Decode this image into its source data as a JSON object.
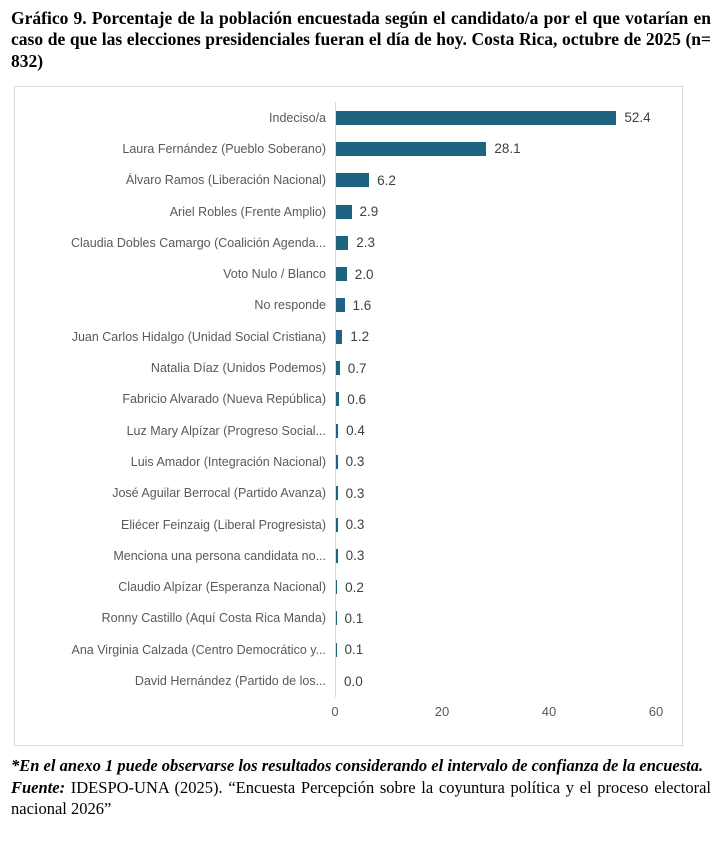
{
  "title": "Gráfico 9. Porcentaje de la población encuestada según el candidato/a por el que votarían en caso de que las elecciones presidenciales fueran el día de hoy. Costa Rica, octubre de 2025 (n= 832)",
  "chart_data": {
    "type": "bar",
    "orientation": "horizontal",
    "categories": [
      "Indeciso/a",
      "Laura Fernández (Pueblo Soberano)",
      "Álvaro Ramos (Liberación Nacional)",
      "Ariel Robles (Frente Amplio)",
      "Claudia Dobles Camargo (Coalición Agenda...",
      "Voto Nulo / Blanco",
      "No responde",
      "Juan Carlos Hidalgo (Unidad Social Cristiana)",
      "Natalia Díaz (Unidos Podemos)",
      "Fabricio Alvarado (Nueva República)",
      "Luz Mary Alpízar (Progreso Social...",
      "Luis Amador (Integración Nacional)",
      "José Aguilar Berrocal (Partido Avanza)",
      "Eliécer Feinzaig (Liberal Progresista)",
      "Menciona una persona candidata no...",
      "Claudio Alpízar (Esperanza Nacional)",
      "Ronny Castillo (Aquí Costa Rica Manda)",
      "Ana Virginia Calzada (Centro Democrático y...",
      "David Hernández (Partido de los..."
    ],
    "values": [
      52.4,
      28.1,
      6.2,
      2.9,
      2.3,
      2.0,
      1.6,
      1.2,
      0.7,
      0.6,
      0.4,
      0.3,
      0.3,
      0.3,
      0.3,
      0.2,
      0.1,
      0.1,
      0.0
    ],
    "x_ticks": [
      0,
      20,
      40,
      60
    ],
    "xlim": [
      0,
      60
    ],
    "grid": false,
    "value_labels": true,
    "bar_color": "#1f6380",
    "axis_line_color": "#d9d9d9",
    "label_color": "#595959",
    "value_label_color": "#404040"
  },
  "footnote": "*En el anexo 1 puede observarse los resultados considerando el intervalo de confianza de la encuesta.",
  "source": {
    "label": "Fuente:",
    "text": " IDESPO-UNA (2025). “Encuesta Percepción sobre la coyuntura política y el proceso electoral nacional 2026”"
  }
}
